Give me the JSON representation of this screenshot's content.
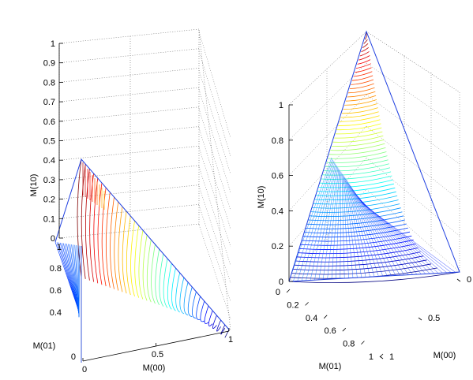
{
  "chart_data": [
    {
      "type": "surface-3d",
      "title": "",
      "xlabel": "M(00)",
      "ylabel": "M(01)",
      "zlabel": "M(10)",
      "x_ticks": [
        "0",
        "0.5",
        "1"
      ],
      "y_ticks": [
        "0.4",
        "0.6",
        "0.8",
        "1"
      ],
      "y_tick_zero": "0",
      "z_ticks": [
        "0",
        "0.1",
        "0.2",
        "0.3",
        "0.4",
        "0.5",
        "0.6",
        "0.7",
        "0.8",
        "0.9",
        "1"
      ],
      "xlim": [
        0,
        1
      ],
      "ylim": [
        0,
        1
      ],
      "zlim": [
        0,
        1
      ],
      "grid": true,
      "colormap": "jet",
      "series": [
        {
          "x": 0,
          "y": 0,
          "z": 0.38
        },
        {
          "x": 1,
          "y": 0,
          "z": 0
        },
        {
          "x": 0,
          "y": 1,
          "z": 0
        }
      ]
    },
    {
      "type": "surface-3d",
      "title": "",
      "xlabel": "M(00)",
      "ylabel": "M(01)",
      "zlabel": "M(10)",
      "x_ticks": [
        "0",
        "0.5",
        "1"
      ],
      "y_ticks": [
        "0",
        "0.2",
        "0.4",
        "0.6",
        "0.8",
        "1"
      ],
      "z_ticks": [
        "0",
        "0.2",
        "0.4",
        "0.6",
        "0.8",
        "1"
      ],
      "xlim": [
        0,
        1
      ],
      "ylim": [
        0,
        1
      ],
      "zlim": [
        0,
        1
      ],
      "grid": true,
      "colormap": "jet",
      "series": [
        {
          "x": 0,
          "y": 0,
          "z": 1
        },
        {
          "x": 1,
          "y": 0,
          "z": 0
        },
        {
          "x": 0,
          "y": 1,
          "z": 0
        }
      ]
    }
  ],
  "colors": {
    "edge": "#1f3fe0",
    "grid": "#666666",
    "axis": "#000000"
  }
}
